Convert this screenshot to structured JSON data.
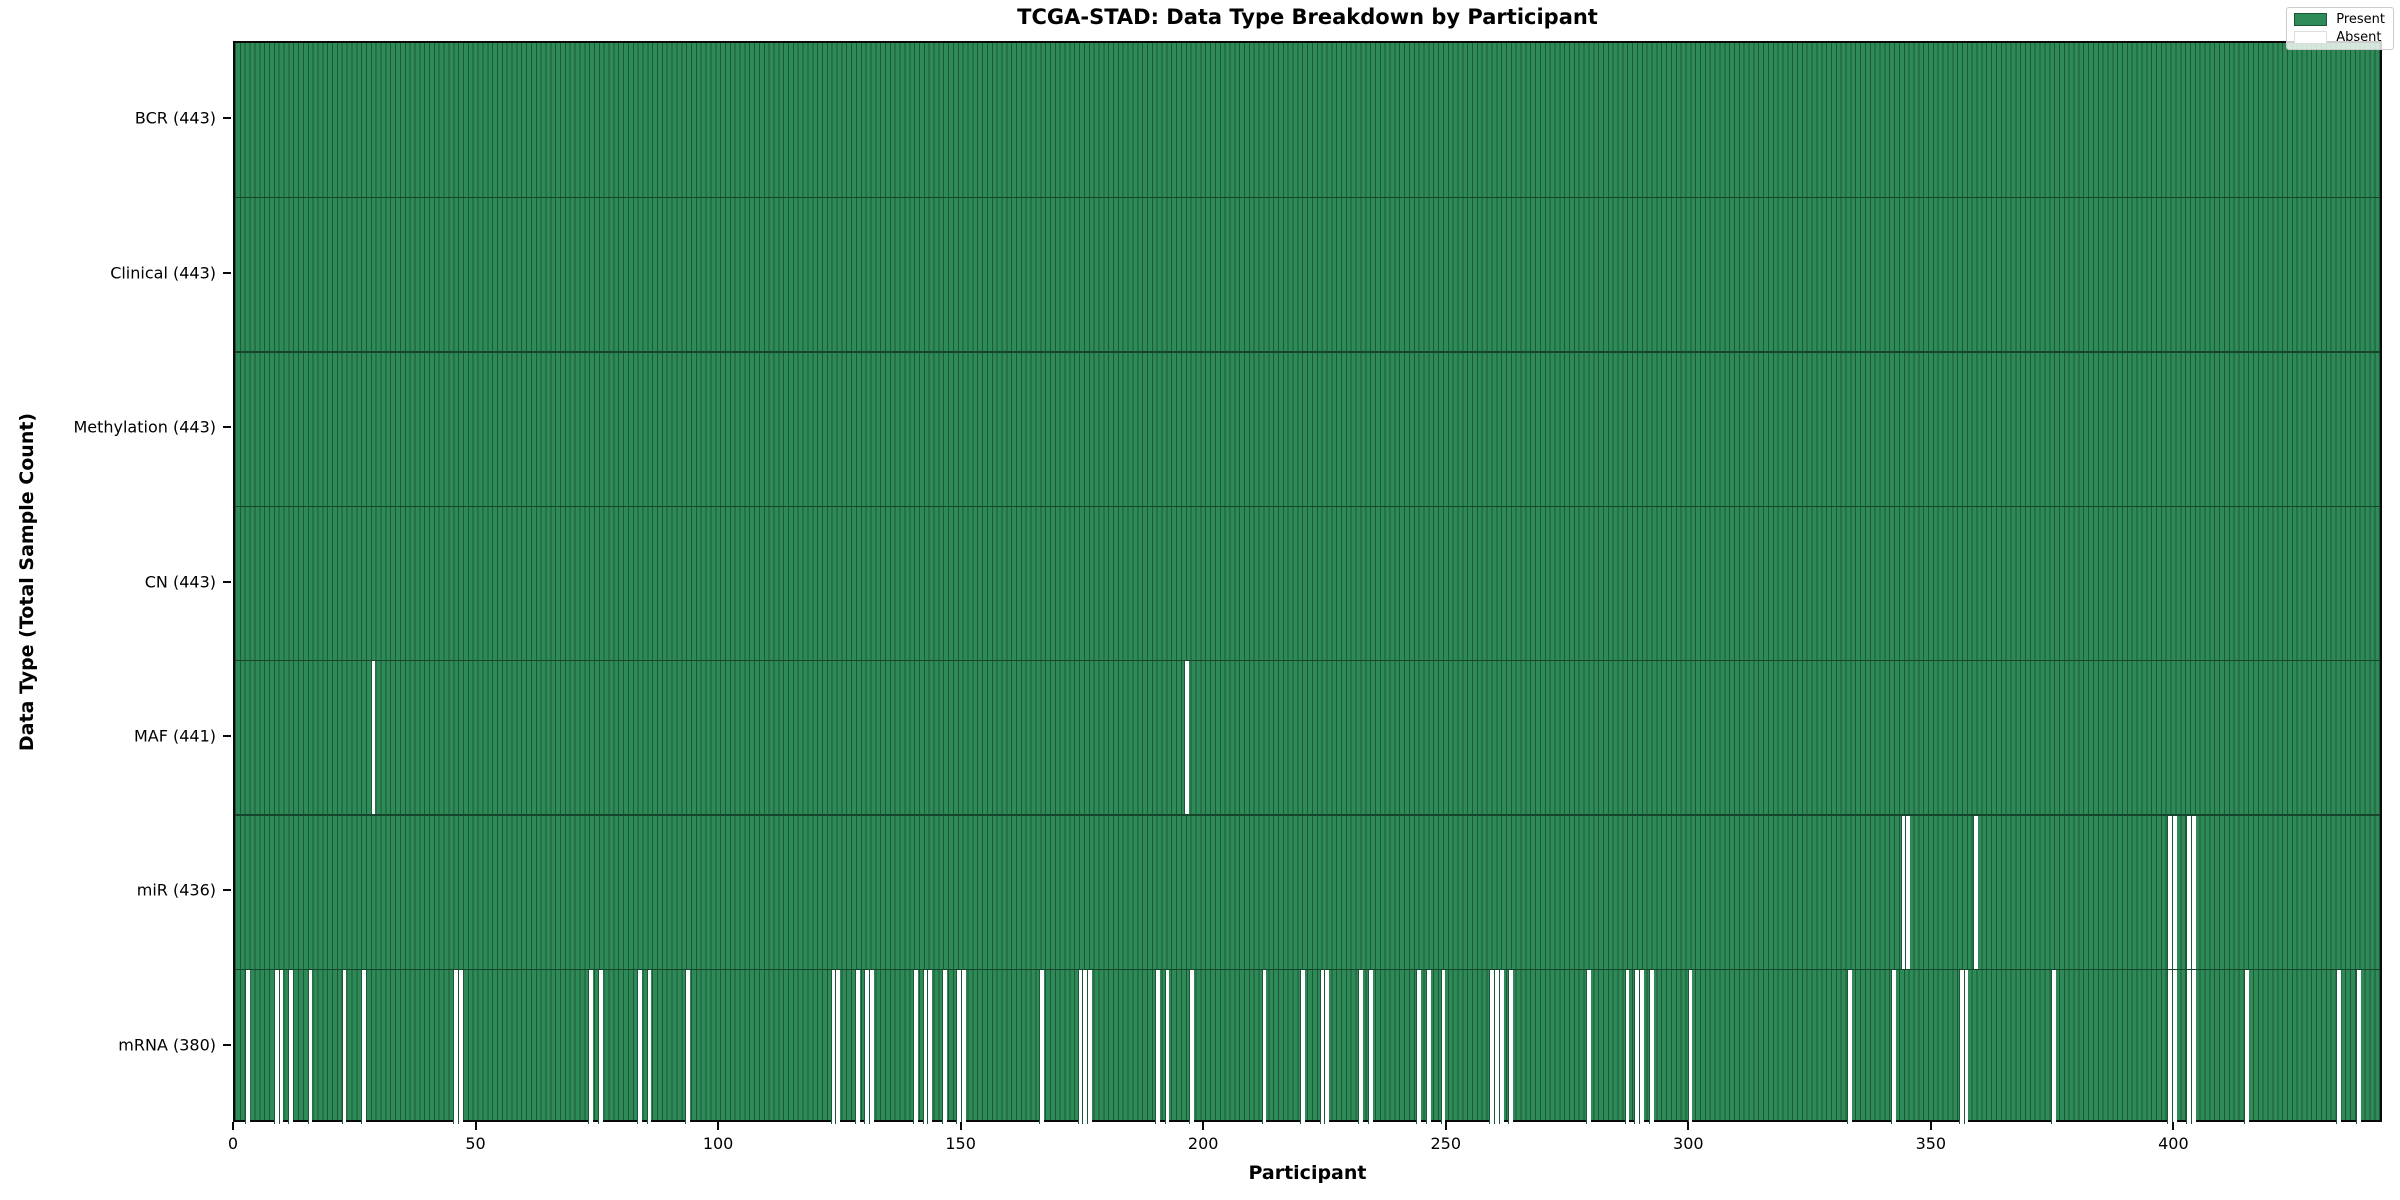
{
  "title": "TCGA-STAD: Data Type Breakdown by Participant",
  "x_axis": {
    "label": "Participant",
    "ticks": [
      0,
      50,
      100,
      150,
      200,
      250,
      300,
      350,
      400
    ]
  },
  "y_axis": {
    "label": "Data Type (Total Sample Count)"
  },
  "legend": {
    "present_label": "Present",
    "absent_label": "Absent"
  },
  "colors": {
    "present": "#2e8b57",
    "absent": "#ffffff",
    "cell_edge": "#1c5838"
  },
  "chart_data": {
    "type": "heatmap",
    "title": "TCGA-STAD: Data Type Breakdown by Participant",
    "xlabel": "Participant",
    "ylabel": "Data Type (Total Sample Count)",
    "x_range": [
      0,
      443
    ],
    "n_participants": 443,
    "legend_entries": [
      "Present",
      "Absent"
    ],
    "legend_position": "upper right",
    "grid": false,
    "rows": [
      {
        "label": "BCR (443)",
        "name": "BCR",
        "total_present": 443,
        "absent_participants": []
      },
      {
        "label": "Clinical (443)",
        "name": "Clinical",
        "total_present": 443,
        "absent_participants": []
      },
      {
        "label": "Methylation (443)",
        "name": "Methylation",
        "total_present": 443,
        "absent_participants": []
      },
      {
        "label": "CN (443)",
        "name": "CN",
        "total_present": 443,
        "absent_participants": []
      },
      {
        "label": "MAF (441)",
        "name": "MAF",
        "total_present": 441,
        "absent_participants": [
          28,
          196
        ]
      },
      {
        "label": "miR (436)",
        "name": "miR",
        "total_present": 436,
        "absent_participants": [
          344,
          345,
          359,
          399,
          400,
          403,
          404
        ]
      },
      {
        "label": "mRNA (380)",
        "name": "mRNA",
        "total_present": 380,
        "absent_participants": [
          2,
          8,
          9,
          11,
          15,
          22,
          26,
          45,
          46,
          73,
          75,
          83,
          85,
          93,
          123,
          124,
          128,
          130,
          131,
          140,
          142,
          143,
          146,
          149,
          150,
          166,
          174,
          175,
          176,
          190,
          192,
          197,
          212,
          220,
          224,
          225,
          232,
          234,
          244,
          246,
          249,
          259,
          260,
          261,
          263,
          279,
          287,
          289,
          290,
          292,
          300,
          333,
          342,
          356,
          357,
          375,
          399,
          400,
          403,
          404,
          415,
          434,
          438
        ]
      }
    ]
  }
}
